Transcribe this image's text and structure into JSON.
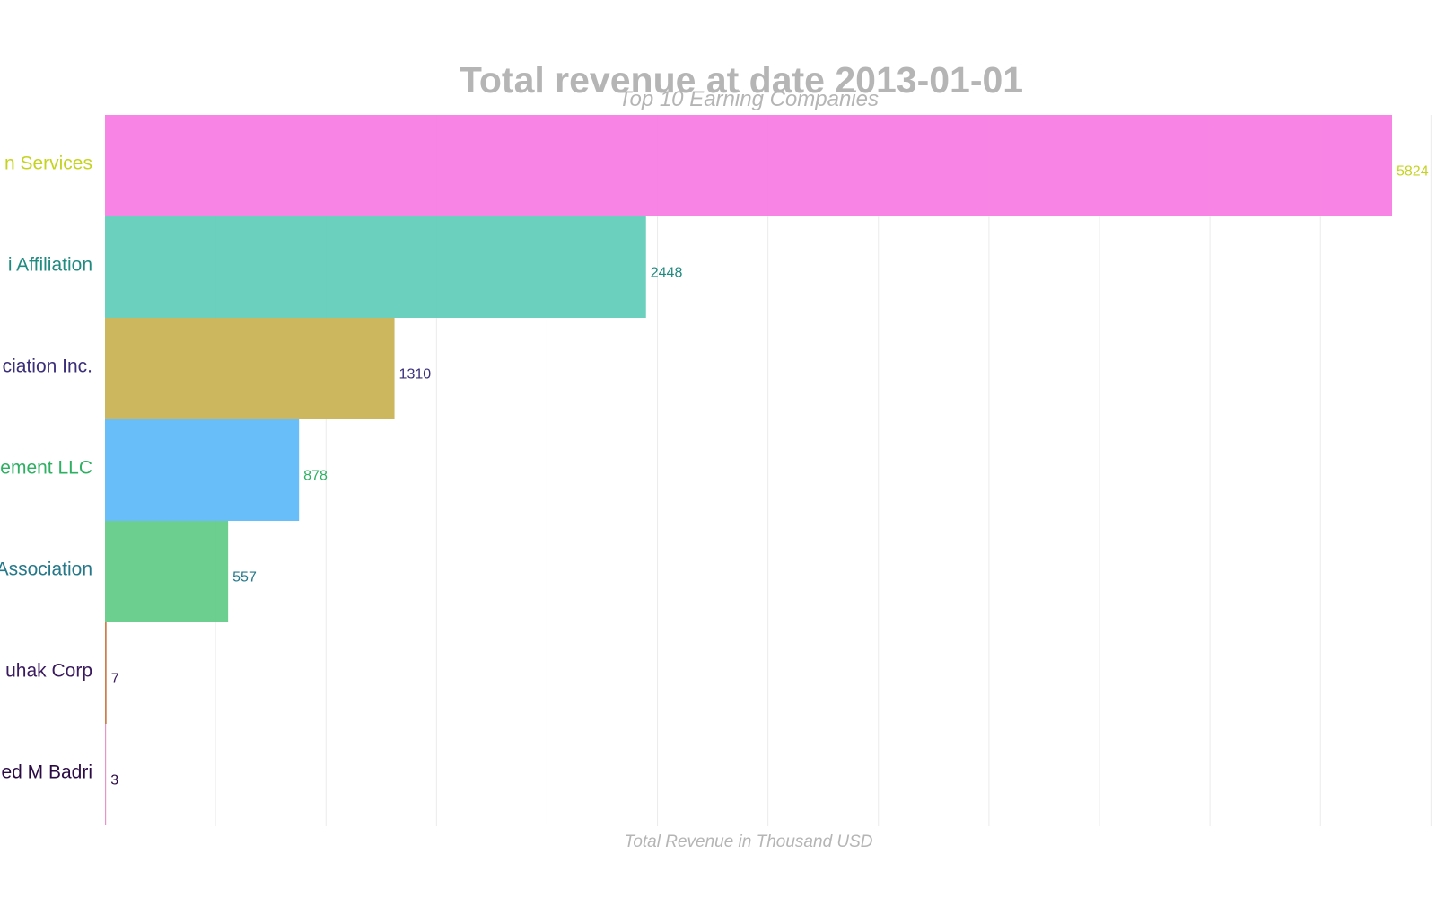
{
  "chart_data": {
    "type": "bar",
    "orientation": "horizontal",
    "title": "Total revenue at date 2013-01-01",
    "subtitle": "Top 10 Earning Companies",
    "xlabel": "Total Revenue in Thousand USD",
    "ylabel": "",
    "xlim": [
      0,
      6000
    ],
    "grid": true,
    "categories": [
      "n Services",
      "i Affiliation",
      "ciation Inc.",
      "ement LLC",
      "Association",
      "uhak Corp",
      "ed M Badri"
    ],
    "values": [
      5824,
      2448,
      1310,
      878,
      557,
      7,
      3
    ],
    "value_labels": [
      "5824",
      "2448",
      "1310",
      "878",
      "557",
      "7",
      "3"
    ],
    "bar_colors": [
      "#f77be3",
      "#5ecdb8",
      "#c8b050",
      "#5bb8f9",
      "#5fcb86",
      "#c9733a",
      "#e78ac3"
    ],
    "label_colors": [
      "#c5d320",
      "#1f8a80",
      "#3b2f7a",
      "#2eb063",
      "#24788a",
      "#3a1a5e",
      "#2c0b45"
    ]
  }
}
